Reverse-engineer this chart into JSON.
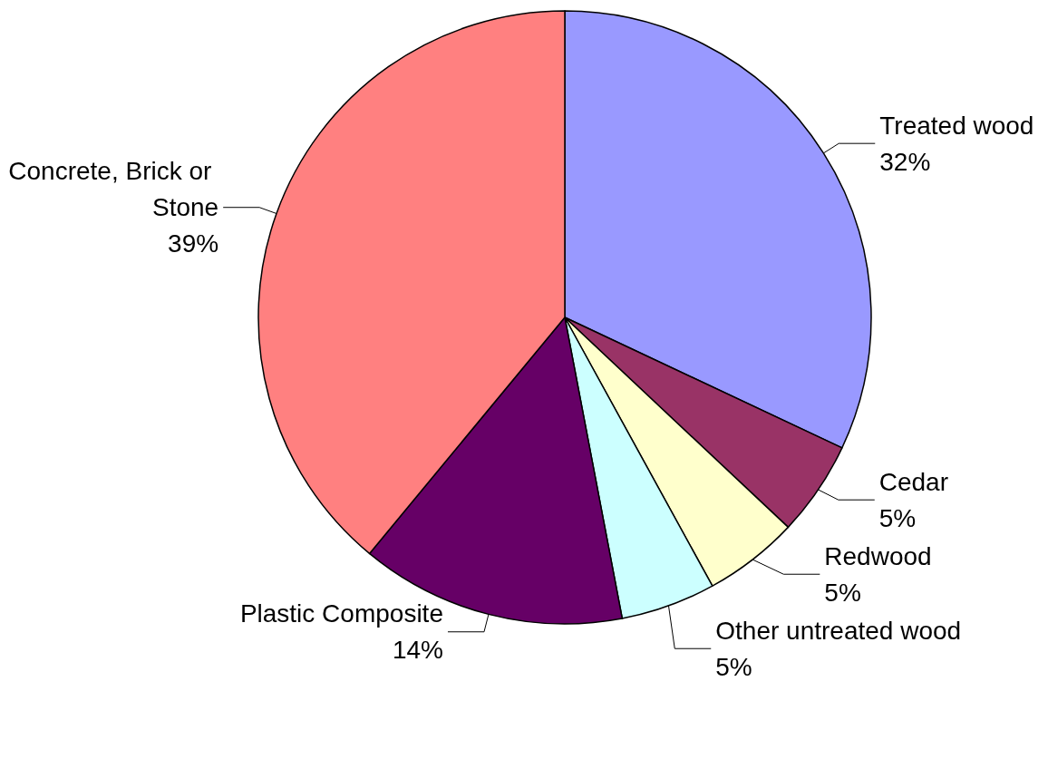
{
  "chart_data": {
    "type": "pie",
    "categories": [
      "Treated wood",
      "Cedar",
      "Redwood",
      "Other untreated wood",
      "Plastic Composite",
      "Concrete, Brick or Stone"
    ],
    "values": [
      32,
      5,
      5,
      5,
      14,
      39
    ],
    "value_labels": [
      "32%",
      "5%",
      "5%",
      "5%",
      "14%",
      "39%"
    ],
    "colors": [
      "#9999ff",
      "#993366",
      "#ffffcc",
      "#ccffff",
      "#660066",
      "#ff8080"
    ],
    "legend": false
  }
}
